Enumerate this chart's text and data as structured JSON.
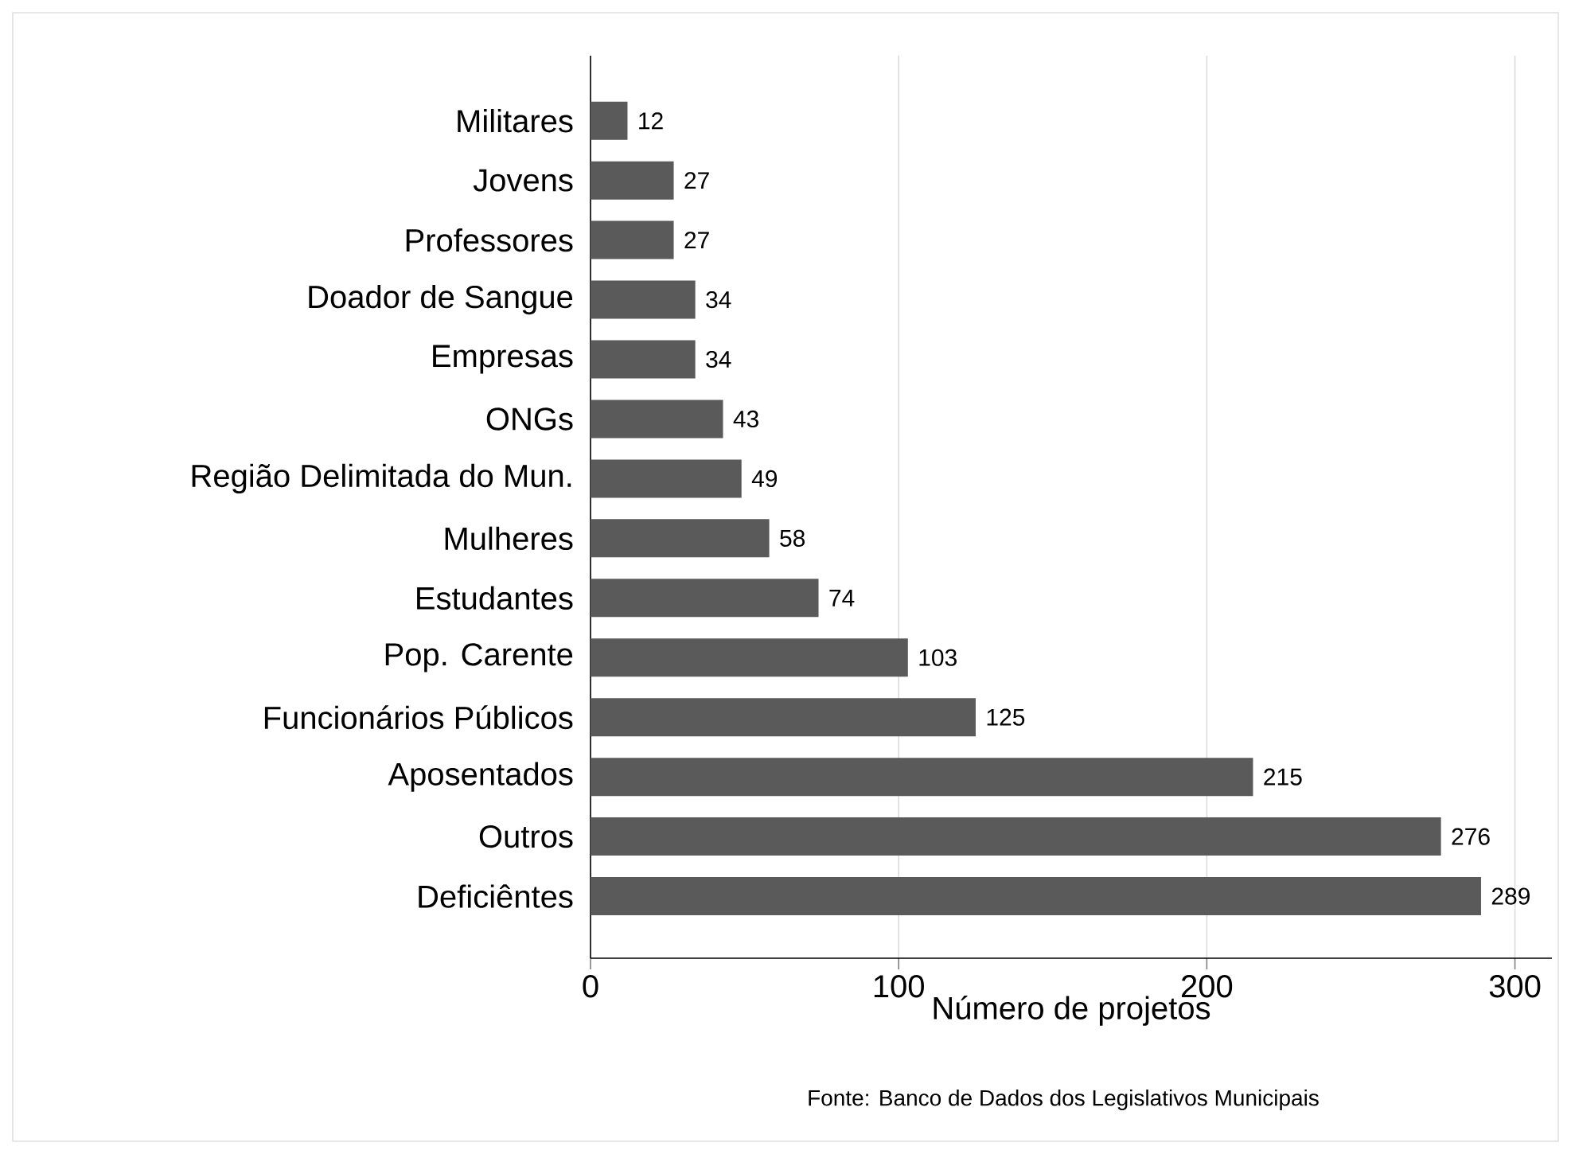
{
  "chart_data": {
    "type": "bar",
    "orientation": "horizontal",
    "categories": [
      "Militares",
      "Jovens",
      "Professores",
      "Doador de Sangue",
      "Empresas",
      "ONGs",
      "Região Delimitada do Mun.",
      "Mulheres",
      "Estudantes",
      "Pop. Carente",
      "Funcionários Públicos",
      "Aposentados",
      "Outros",
      "Deficiêntes"
    ],
    "values": [
      12,
      27,
      27,
      34,
      34,
      43,
      49,
      58,
      74,
      103,
      125,
      215,
      276,
      289
    ],
    "color": "#5a5a5a",
    "xlim": [
      0,
      312
    ],
    "xticks": [
      0,
      100,
      200,
      300
    ],
    "xlabel": "Número de projetos",
    "annotations": [
      "Fonte: Banco de Dados dos Legislativos Municipais"
    ],
    "data_labels": true,
    "grid": "x"
  }
}
